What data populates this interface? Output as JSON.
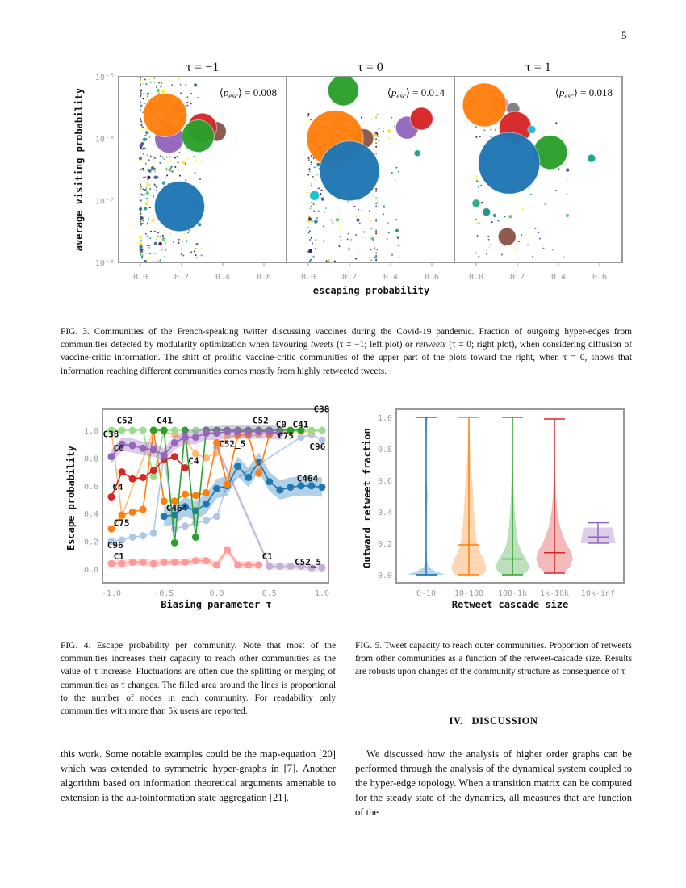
{
  "page_number": "5",
  "fig3": {
    "ylabel": "average visiting probability",
    "xlabel": "escaping probability",
    "yticks": [
      "10⁻⁵",
      "10⁻⁶",
      "10⁻⁷",
      "10⁻⁸"
    ],
    "xticks": [
      "0.0",
      "0.2",
      "0.4",
      "0.6"
    ],
    "panels": [
      {
        "title": "τ = −1",
        "annot": {
          "open": "⟨",
          "p": "p",
          "sub": "esc",
          "close": "⟩ = ",
          "value": "0.008"
        },
        "bubbles": [
          {
            "x": 0.19,
            "y": 8e-08,
            "size": 31,
            "color": "#1f77b4"
          },
          {
            "x": 0.14,
            "y": 1e-06,
            "size": 18,
            "color": "#9467bd"
          },
          {
            "x": 0.37,
            "y": 1.3e-06,
            "size": 12,
            "color": "#8c564b"
          },
          {
            "x": 0.3,
            "y": 1.5e-06,
            "size": 18,
            "color": "#d62728"
          },
          {
            "x": 0.12,
            "y": 2.4e-06,
            "size": 27,
            "color": "#ff7f0e"
          },
          {
            "x": 0.28,
            "y": 1.1e-06,
            "size": 20,
            "color": "#2ca02c"
          }
        ]
      },
      {
        "title": "τ = 0",
        "annot": {
          "open": "⟨",
          "p": "p",
          "sub": "esc",
          "close": "⟩ = ",
          "value": "0.014"
        },
        "bubbles": [
          {
            "x": 0.17,
            "y": 6e-06,
            "size": 19,
            "color": "#2ca02c"
          },
          {
            "x": 0.27,
            "y": 1e-06,
            "size": 12,
            "color": "#8c564b"
          },
          {
            "x": 0.13,
            "y": 1e-06,
            "size": 35,
            "color": "#ff7f0e"
          },
          {
            "x": 0.2,
            "y": 3e-07,
            "size": 37,
            "color": "#1f77b4"
          },
          {
            "x": 0.48,
            "y": 1.5e-06,
            "size": 14,
            "color": "#9467bd"
          },
          {
            "x": 0.55,
            "y": 2.1e-06,
            "size": 14,
            "color": "#d62728"
          },
          {
            "x": 0.53,
            "y": 5.8e-07,
            "size": 4,
            "color": "#17a589"
          },
          {
            "x": 0.03,
            "y": 1.2e-07,
            "size": 6,
            "color": "#17becf"
          }
        ]
      },
      {
        "title": "τ = 1",
        "annot": {
          "open": "⟨",
          "p": "p",
          "sub": "esc",
          "close": "⟩ = ",
          "value": "0.018"
        },
        "bubbles": [
          {
            "x": 0.12,
            "y": 3.5e-06,
            "size": 10,
            "color": "#e377c2"
          },
          {
            "x": 0.18,
            "y": 3e-06,
            "size": 8,
            "color": "#7f7f7f"
          },
          {
            "x": 0.04,
            "y": 3.5e-06,
            "size": 27,
            "color": "#ff7f0e"
          },
          {
            "x": 0.19,
            "y": 1.5e-06,
            "size": 20,
            "color": "#d62728"
          },
          {
            "x": 0.27,
            "y": 1.4e-06,
            "size": 5,
            "color": "#17becf"
          },
          {
            "x": 0.36,
            "y": 6e-07,
            "size": 21,
            "color": "#2ca02c"
          },
          {
            "x": 0.16,
            "y": 4e-07,
            "size": 38,
            "color": "#1f77b4"
          },
          {
            "x": 0.56,
            "y": 4.8e-07,
            "size": 5,
            "color": "#17a589"
          },
          {
            "x": 0.15,
            "y": 2.6e-08,
            "size": 11,
            "color": "#8c564b"
          },
          {
            "x": 0.0,
            "y": 9e-08,
            "size": 5,
            "color": "#2ab07f"
          },
          {
            "x": 0.05,
            "y": 6.5e-08,
            "size": 5,
            "color": "#21918c"
          }
        ]
      }
    ]
  },
  "fig3_caption": {
    "a": "FIG. 3. Communities of the French-speaking twitter discussing vaccines during the Covid-19 pandemic. Fraction of outgoing hyper-edges from communities detected by modularity optimization when favouring ",
    "em1": "tweets",
    "b": " (τ = −1; left plot) or ",
    "em2": "retweets",
    "c": " (τ = 0; right plot), when considering diffusion of vaccine-critic information. The shift of prolific vaccine-critic communities of the upper part of the plots toward the right, when τ = 0, shows that information reaching different communities comes mostly from highly retweeted tweets."
  },
  "chart_data": [
    {
      "type": "line",
      "title": "",
      "xlabel": "Biasing parameter τ",
      "ylabel": "Escape probability",
      "xlim": [
        -1.1,
        1.1
      ],
      "ylim": [
        -0.08,
        1.12
      ],
      "xticks": [
        "-1.0",
        "-0.5",
        "0.0",
        "0.5",
        "1.0"
      ],
      "xtick_values": [
        -1,
        -0.5,
        0,
        0.5,
        1
      ],
      "yticks": [
        "0.0",
        "0.2",
        "0.4",
        "0.6",
        "0.8",
        "1.0"
      ],
      "ytick_values": [
        0,
        0.2,
        0.4,
        0.6,
        0.8,
        1.0
      ],
      "series": [
        {
          "name": "C1",
          "color": "#ff9896",
          "band": 0.025,
          "x": [
            -1,
            -0.9,
            -0.8,
            -0.7,
            -0.6,
            -0.5,
            -0.4,
            -0.3,
            -0.2,
            -0.1,
            0,
            0.1,
            0.2,
            0.3,
            0.4
          ],
          "y": [
            0.04,
            0.04,
            0.05,
            0.05,
            0.04,
            0.05,
            0.05,
            0.05,
            0.06,
            0.06,
            0.03,
            0.14,
            0.03,
            0.03,
            0.03
          ]
        },
        {
          "name": "C52_5",
          "color": "#c5b0d5",
          "band": 0.025,
          "x": [
            0,
            0.5,
            0.6,
            0.7,
            0.8,
            0.9,
            1.0
          ],
          "y": [
            0.88,
            0.02,
            0.02,
            0.02,
            0.02,
            0.01,
            0.01
          ]
        },
        {
          "name": "C96",
          "color": "#aec7e8",
          "band": 0,
          "x": [
            -1,
            -0.9,
            -0.8,
            -0.7,
            -0.6,
            -0.5,
            -0.4,
            -0.3,
            -0.2,
            -0.1,
            0,
            0.1,
            0.8,
            0.9,
            1.0
          ],
          "y": [
            0.2,
            0.21,
            0.23,
            0.24,
            0.26,
            0.82,
            0.29,
            0.31,
            0.33,
            0.35,
            0.38,
            0.61,
            0.95,
            0.97,
            0.93
          ]
        },
        {
          "name": "C38",
          "color": "#ffbb78",
          "band": 0,
          "x": [
            -1,
            -0.9,
            -0.6,
            -0.5,
            -0.4,
            -0.3,
            -0.2,
            -0.1,
            0,
            0.1,
            0.2,
            0.3,
            0.4,
            0.5,
            0.6,
            0.7,
            0.8,
            0.9,
            1.0
          ],
          "y": [
            1.0,
            0.38,
            1.0,
            0.99,
            0.97,
            0.93,
            0.83,
            0.8,
            0.84,
            0.96,
            0.96,
            0.96,
            0.97,
            0.98,
            0.99,
            0.99,
            0.99,
            0.99,
            1.0
          ]
        },
        {
          "name": "C464",
          "color": "#1f77b4",
          "band": 0.07,
          "x": [
            -0.5,
            -0.4,
            -0.3,
            -0.2,
            -0.1,
            0,
            0.1,
            0.2,
            0.3,
            0.4,
            0.5,
            0.6,
            0.7,
            0.8,
            0.9,
            1.0
          ],
          "y": [
            0.38,
            0.39,
            0.45,
            0.42,
            0.47,
            0.58,
            0.6,
            0.74,
            0.66,
            0.77,
            0.63,
            0.57,
            0.59,
            0.6,
            0.6,
            0.59
          ]
        },
        {
          "name": "C75",
          "color": "#ff7f0e",
          "band": 0,
          "x": [
            -1,
            -0.9,
            -0.8,
            -0.7,
            -0.6,
            -0.5,
            -0.4,
            -0.3,
            -0.2,
            -0.1,
            0,
            0.1,
            0.2,
            0.3,
            0.4,
            0.5,
            0.6
          ],
          "y": [
            0.29,
            0.39,
            0.41,
            0.43,
            1.0,
            0.49,
            0.49,
            0.54,
            0.53,
            0.55,
            0.91,
            0.61,
            0.97,
            0.97,
            0.69,
            0.97,
            0.99
          ]
        },
        {
          "name": "C52",
          "color": "#98df8a",
          "band": 0,
          "x": [
            -1,
            -0.9,
            -0.8,
            -0.7,
            -0.6,
            -0.5,
            -0.4,
            -0.3,
            -0.2,
            -0.1,
            0,
            0.1,
            0.2,
            0.3,
            0.4,
            0.5,
            0.6,
            0.7,
            0.8,
            0.9,
            1.0
          ],
          "y": [
            1,
            1,
            1,
            1,
            0.67,
            1,
            1,
            1,
            1,
            1,
            1,
            1,
            1,
            1,
            1,
            1,
            1,
            1,
            1,
            1,
            1
          ]
        },
        {
          "name": "C41",
          "color": "#2ca02c",
          "band": 0,
          "x": [
            -0.6,
            -0.5,
            -0.4,
            -0.3,
            -0.2,
            -0.1,
            0,
            0.1,
            0.2,
            0.3,
            0.4,
            0.5,
            0.6,
            0.7,
            0.8
          ],
          "y": [
            1.0,
            1.0,
            0.19,
            1.0,
            0.23,
            1.0,
            1,
            1,
            1,
            1,
            1,
            1,
            1,
            1,
            1
          ]
        },
        {
          "name": "C4",
          "color": "#d62728",
          "band": 0,
          "x": [
            -1,
            -0.9,
            -0.8,
            -0.7,
            -0.6,
            -0.5,
            -0.4,
            -0.3
          ],
          "y": [
            0.52,
            0.7,
            0.65,
            0.66,
            0.71,
            0.79,
            0.81,
            0.73
          ]
        },
        {
          "name": "C0",
          "color": "#9467bd",
          "band": 0.05,
          "x": [
            -1,
            -0.9,
            -0.8,
            -0.7,
            -0.6,
            -0.5,
            -0.4,
            -0.3,
            -0.2,
            -0.1,
            0,
            0.1,
            0.2,
            0.3,
            0.4,
            0.5,
            0.6
          ],
          "y": [
            0.81,
            0.9,
            0.89,
            0.87,
            0.86,
            0.82,
            0.91,
            0.95,
            0.95,
            0.98,
            0.98,
            0.99,
            0.99,
            0.99,
            0.99,
            0.99,
            0.98
          ]
        }
      ],
      "annotations": [
        {
          "text": "C52",
          "x": -0.95,
          "y": 1.05
        },
        {
          "text": "C41",
          "x": -0.57,
          "y": 1.05
        },
        {
          "text": "C38",
          "x": -1.08,
          "y": 0.95
        },
        {
          "text": "C0",
          "x": -0.98,
          "y": 0.85
        },
        {
          "text": "C4",
          "x": -0.99,
          "y": 0.57
        },
        {
          "text": "C4",
          "x": -0.27,
          "y": 0.76
        },
        {
          "text": "C75",
          "x": -0.98,
          "y": 0.31
        },
        {
          "text": "C96",
          "x": -1.04,
          "y": 0.15
        },
        {
          "text": "C1",
          "x": -0.98,
          "y": 0.07
        },
        {
          "text": "C464",
          "x": -0.48,
          "y": 0.42
        },
        {
          "text": "C52_5",
          "x": 0.02,
          "y": 0.88
        },
        {
          "text": "C52",
          "x": 0.34,
          "y": 1.05
        },
        {
          "text": "C0",
          "x": 0.56,
          "y": 1.02
        },
        {
          "text": "C41",
          "x": 0.72,
          "y": 1.02
        },
        {
          "text": "C38",
          "x": 0.92,
          "y": 1.13
        },
        {
          "text": "C75",
          "x": 0.58,
          "y": 0.94
        },
        {
          "text": "C96",
          "x": 0.88,
          "y": 0.86
        },
        {
          "text": "C464",
          "x": 0.76,
          "y": 0.63
        },
        {
          "text": "C1",
          "x": 0.43,
          "y": 0.07
        },
        {
          "text": "C52_5",
          "x": 0.74,
          "y": 0.03
        }
      ]
    },
    {
      "type": "violin",
      "title": "",
      "xlabel": "Retweet cascade size",
      "ylabel": "Outward retweet fraction",
      "ylim": [
        -0.05,
        1.05
      ],
      "yticks": [
        "0.0",
        "0.2",
        "0.4",
        "0.6",
        "0.8",
        "1.0"
      ],
      "ytick_values": [
        0,
        0.2,
        0.4,
        0.6,
        0.8,
        1.0
      ],
      "categories": [
        "0-10",
        "10-100",
        "100-1k",
        "1k-10k",
        "10k-inf"
      ],
      "levels": [
        0,
        0.02,
        0.05,
        0.1,
        0.15,
        0.2,
        0.3,
        0.4,
        0.5,
        0.6,
        0.7,
        0.8,
        0.9,
        1.0
      ],
      "violins": [
        {
          "color": "#1f77b4",
          "min": 0,
          "max": 1.0,
          "mean": 0.0,
          "density": [
            1.0,
            0.5,
            0.12,
            0.04,
            0.03,
            0.02,
            0.02,
            0.03,
            0.08,
            0.02,
            0.02,
            0.02,
            0.03,
            0.08
          ]
        },
        {
          "color": "#ff7f0e",
          "min": 0,
          "max": 1.0,
          "mean": 0.19,
          "density": [
            0.7,
            0.85,
            0.9,
            0.75,
            0.55,
            0.42,
            0.32,
            0.26,
            0.22,
            0.17,
            0.1,
            0.06,
            0.03,
            0.01
          ]
        },
        {
          "color": "#2ca02c",
          "min": 0,
          "max": 1.0,
          "mean": 0.1,
          "density": [
            0.5,
            0.75,
            0.9,
            0.7,
            0.45,
            0.3,
            0.18,
            0.12,
            0.08,
            0.05,
            0.03,
            0.02,
            0.01,
            0.01
          ]
        },
        {
          "color": "#d62728",
          "min": 0.01,
          "max": 0.99,
          "mean": 0.14,
          "density": [
            0.3,
            0.55,
            0.8,
            0.95,
            0.85,
            0.6,
            0.3,
            0.15,
            0.08,
            0.05,
            0.03,
            0.02,
            0.01,
            0.01
          ]
        },
        {
          "color": "#9467bd",
          "min": 0.2,
          "max": 0.33,
          "mean": 0.24,
          "density": [
            0,
            0,
            0,
            0,
            0,
            0.9,
            0.75,
            0,
            0,
            0,
            0,
            0,
            0,
            0
          ]
        }
      ]
    }
  ],
  "fig4_caption": "FIG. 4. Escape probability per community. Note that most of the communities increases their capacity to reach other communities as the value of τ increase. Fluctuations are often due the splitting or merging of communities as τ changes. The filled area around the lines is proportional to the number of nodes in each community. For readability only communities with more than 5k users are reported.",
  "fig5_caption": "FIG. 5. Tweet capacity to reach outer communities. Proportion of retweets from other communities as a function of the retweet-cascade size. Results are robusts upon changes of the community structure as consequence of τ",
  "section_heading": "IV.   DISCUSSION",
  "body_left": "this work. Some notable examples could be the map-equation [20] which was extended to symmetric hyper-graphs in [7]. Another algorithm based on information theoretical arguments amenable to extension is the au-toinformation state aggregation [21].",
  "body_right": "We discussed how the analysis of higher order graphs can be performed through the analysis of the dynamical system coupled to the hyper-edge topology. When a transition matrix can be computed for the steady state of the dynamics, all measures that are function of the"
}
